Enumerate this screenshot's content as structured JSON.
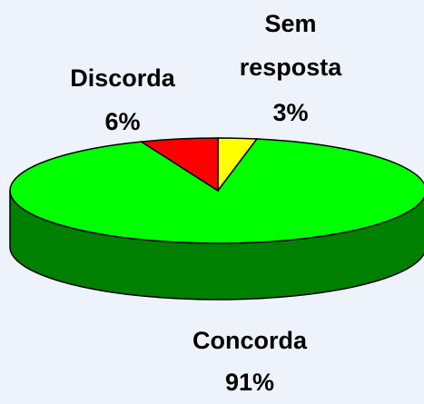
{
  "chart_data": {
    "type": "pie3d",
    "categories": [
      "Sem resposta",
      "Concorda",
      "Discorda"
    ],
    "values": [
      3,
      91,
      6
    ],
    "value_labels": [
      "3%",
      "91%",
      "6%"
    ],
    "colors": [
      "#ffff00",
      "#00ff00",
      "#ff0000"
    ]
  }
}
